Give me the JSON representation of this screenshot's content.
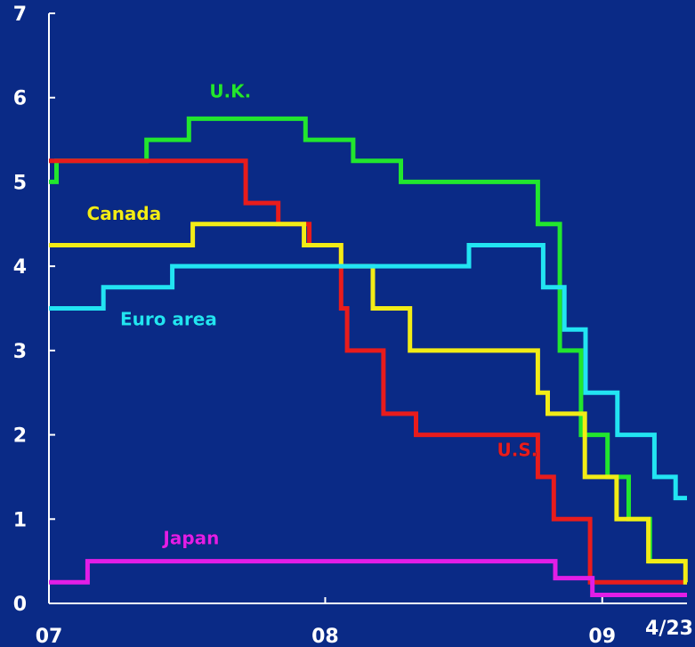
{
  "chart_data": {
    "type": "line",
    "step": true,
    "title": "",
    "xlabel": "",
    "ylabel": "",
    "ylim": [
      0,
      7
    ],
    "xlim": [
      "2007-01-01",
      "2009-04-23"
    ],
    "x_tick_labels": [
      {
        "x": "2007-01-01",
        "label": "07"
      },
      {
        "x": "2008-01-01",
        "label": "08"
      },
      {
        "x": "2009-01-01",
        "label": "09"
      },
      {
        "x": "2009-04-23",
        "label": "4/23"
      }
    ],
    "y_tick_labels": [
      "0",
      "1",
      "2",
      "3",
      "4",
      "5",
      "6",
      "7"
    ],
    "grid": false,
    "series": [
      {
        "name": "U.K.",
        "color": "#22e62e",
        "points": [
          [
            "2007-01-01",
            5.0
          ],
          [
            "2007-01-11",
            5.25
          ],
          [
            "2007-05-10",
            5.5
          ],
          [
            "2007-07-05",
            5.75
          ],
          [
            "2007-12-06",
            5.5
          ],
          [
            "2008-02-07",
            5.25
          ],
          [
            "2008-04-10",
            5.0
          ],
          [
            "2008-10-08",
            4.5
          ],
          [
            "2008-11-06",
            3.0
          ],
          [
            "2008-12-04",
            2.0
          ],
          [
            "2009-01-08",
            1.5
          ],
          [
            "2009-02-05",
            1.0
          ],
          [
            "2009-03-05",
            0.5
          ],
          [
            "2009-04-23",
            0.5
          ]
        ]
      },
      {
        "name": "U.S.",
        "color": "#e81c1c",
        "points": [
          [
            "2007-01-01",
            5.25
          ],
          [
            "2007-09-18",
            4.75
          ],
          [
            "2007-10-31",
            4.5
          ],
          [
            "2007-12-11",
            4.25
          ],
          [
            "2008-01-22",
            3.5
          ],
          [
            "2008-01-30",
            3.0
          ],
          [
            "2008-03-18",
            2.25
          ],
          [
            "2008-04-30",
            2.0
          ],
          [
            "2008-10-08",
            1.5
          ],
          [
            "2008-10-29",
            1.0
          ],
          [
            "2008-12-16",
            0.25
          ],
          [
            "2009-04-23",
            0.25
          ]
        ]
      },
      {
        "name": "Canada",
        "color": "#f2ec16",
        "points": [
          [
            "2007-01-01",
            4.25
          ],
          [
            "2007-07-10",
            4.5
          ],
          [
            "2007-12-04",
            4.25
          ],
          [
            "2008-01-22",
            4.0
          ],
          [
            "2008-03-04",
            3.5
          ],
          [
            "2008-04-22",
            3.0
          ],
          [
            "2008-10-08",
            2.5
          ],
          [
            "2008-10-21",
            2.25
          ],
          [
            "2008-12-09",
            1.5
          ],
          [
            "2009-01-20",
            1.0
          ],
          [
            "2009-03-03",
            0.5
          ],
          [
            "2009-04-21",
            0.25
          ],
          [
            "2009-04-23",
            0.25
          ]
        ]
      },
      {
        "name": "Euro area",
        "color": "#22e4f2",
        "points": [
          [
            "2007-01-01",
            3.5
          ],
          [
            "2007-03-14",
            3.75
          ],
          [
            "2007-06-13",
            4.0
          ],
          [
            "2008-07-09",
            4.25
          ],
          [
            "2008-10-15",
            3.75
          ],
          [
            "2008-11-12",
            3.25
          ],
          [
            "2008-12-10",
            2.5
          ],
          [
            "2009-01-21",
            2.0
          ],
          [
            "2009-03-11",
            1.5
          ],
          [
            "2009-04-08",
            1.25
          ],
          [
            "2009-04-23",
            1.25
          ]
        ]
      },
      {
        "name": "Japan",
        "color": "#e21ee6",
        "points": [
          [
            "2007-01-01",
            0.25
          ],
          [
            "2007-02-21",
            0.5
          ],
          [
            "2008-10-31",
            0.3
          ],
          [
            "2008-12-19",
            0.1
          ],
          [
            "2009-04-23",
            0.1
          ]
        ]
      }
    ],
    "labels": [
      {
        "text": "U.K.",
        "series": "U.K.",
        "x": "2007-08-01",
        "y": 6.0
      },
      {
        "text": "Canada",
        "series": "Canada",
        "x": "2007-02-20",
        "y": 4.55
      },
      {
        "text": "Euro area",
        "series": "Euro area",
        "x": "2007-04-05",
        "y": 3.3
      },
      {
        "text": "U.S.",
        "series": "U.S.",
        "x": "2008-08-15",
        "y": 1.75
      },
      {
        "text": "Japan",
        "series": "Japan",
        "x": "2007-06-01",
        "y": 0.7
      }
    ]
  }
}
